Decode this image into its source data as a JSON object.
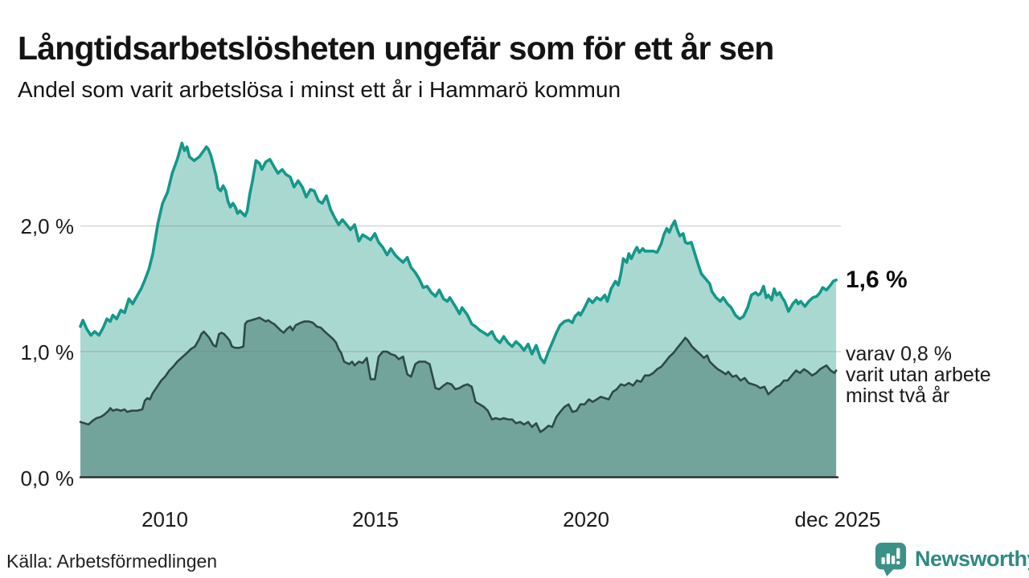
{
  "title": "Långtidsarbetslösheten ungefär som för ett år sen",
  "subtitle": "Andel som varit arbetslösa i minst ett år i Hammarö kommun",
  "source": "Källa: Arbetsförmedlingen",
  "branding": {
    "name": "Newsworthy"
  },
  "annotations": {
    "total_end_label": "1,6 %",
    "sub_line1": "varav 0,8 %",
    "sub_line2": "varit utan arbete",
    "sub_line3": "minst två år"
  },
  "y_ticks": {
    "t0": "0,0 %",
    "t1": "1,0 %",
    "t2": "2,0 %"
  },
  "x_ticks": {
    "t2010": "2010",
    "t2015": "2015",
    "t2020": "2020",
    "tend": "dec 2025"
  },
  "colors": {
    "line_total": "#149889",
    "area_total": "#a9d8d1",
    "line_two_years": "#2d4a45",
    "area_two_years": "#73a49c",
    "grid": "rgba(120,120,120,0.30)",
    "axis": "#222222",
    "brand_teal": "#2e8b81",
    "brand_icon": "#3b9187"
  },
  "chart_data": {
    "type": "area",
    "title": "Långtidsarbetslösheten ungefär som för ett år sen",
    "subtitle": "Andel som varit arbetslösa i minst ett år i Hammarö kommun",
    "x_unit": "decimal_year (monthly estimates)",
    "x_range": [
      2008.0,
      2025.94
    ],
    "ylabel": "procent",
    "ylim": [
      0,
      2.8
    ],
    "y_gridlines": [
      1.0,
      2.0
    ],
    "x_tick_positions": [
      2010,
      2015,
      2020,
      2025.94
    ],
    "legend_position": "right-edge annotations",
    "series": [
      {
        "name": "Andel arbetslösa minst ett år",
        "end_label": "1,6 %",
        "x": [
          2008.0,
          2008.06,
          2008.15,
          2008.25,
          2008.34,
          2008.44,
          2008.54,
          2008.63,
          2008.71,
          2008.77,
          2008.86,
          2008.96,
          2009.05,
          2009.15,
          2009.24,
          2009.34,
          2009.44,
          2009.53,
          2009.63,
          2009.72,
          2009.84,
          2009.95,
          2010.07,
          2010.18,
          2010.3,
          2010.41,
          2010.47,
          2010.53,
          2010.59,
          2010.7,
          2010.82,
          2010.93,
          2010.99,
          2011.04,
          2011.1,
          2011.16,
          2011.22,
          2011.27,
          2011.33,
          2011.39,
          2011.45,
          2011.5,
          2011.56,
          2011.62,
          2011.68,
          2011.73,
          2011.79,
          2011.85,
          2011.91,
          2011.96,
          2012.02,
          2012.08,
          2012.17,
          2012.25,
          2012.31,
          2012.4,
          2012.5,
          2012.6,
          2012.69,
          2012.79,
          2012.88,
          2012.98,
          2013.07,
          2013.17,
          2013.27,
          2013.36,
          2013.46,
          2013.55,
          2013.65,
          2013.74,
          2013.84,
          2013.94,
          2014.03,
          2014.13,
          2014.22,
          2014.32,
          2014.41,
          2014.51,
          2014.61,
          2014.7,
          2014.8,
          2014.89,
          2014.99,
          2015.08,
          2015.18,
          2015.28,
          2015.37,
          2015.47,
          2015.56,
          2015.66,
          2015.76,
          2015.85,
          2015.95,
          2016.04,
          2016.14,
          2016.23,
          2016.33,
          2016.43,
          2016.52,
          2016.62,
          2016.71,
          2016.77,
          2016.9,
          2017.0,
          2017.06,
          2017.19,
          2017.29,
          2017.38,
          2017.48,
          2017.58,
          2017.67,
          2017.77,
          2017.86,
          2017.96,
          2018.05,
          2018.15,
          2018.25,
          2018.34,
          2018.44,
          2018.53,
          2018.63,
          2018.72,
          2018.82,
          2018.92,
          2019.01,
          2019.11,
          2019.2,
          2019.3,
          2019.39,
          2019.49,
          2019.59,
          2019.68,
          2019.74,
          2019.83,
          2019.87,
          2019.97,
          2020.07,
          2020.16,
          2020.26,
          2020.35,
          2020.45,
          2020.51,
          2020.6,
          2020.7,
          2020.77,
          2020.83,
          2020.89,
          2020.97,
          2021.02,
          2021.08,
          2021.16,
          2021.21,
          2021.27,
          2021.35,
          2021.4,
          2021.5,
          2021.6,
          2021.69,
          2021.79,
          2021.85,
          2021.92,
          2021.98,
          2022.04,
          2022.11,
          2022.17,
          2022.23,
          2022.31,
          2022.36,
          2022.42,
          2022.5,
          2022.55,
          2022.65,
          2022.74,
          2022.84,
          2022.94,
          2022.99,
          2023.09,
          2023.19,
          2023.26,
          2023.36,
          2023.45,
          2023.55,
          2023.65,
          2023.74,
          2023.84,
          2023.93,
          2024.03,
          2024.09,
          2024.14,
          2024.22,
          2024.28,
          2024.33,
          2024.41,
          2024.47,
          2024.53,
          2024.6,
          2024.66,
          2024.72,
          2024.81,
          2024.91,
          2024.99,
          2025.04,
          2025.1,
          2025.2,
          2025.29,
          2025.39,
          2025.48,
          2025.56,
          2025.62,
          2025.71,
          2025.81,
          2025.87,
          2025.94
        ],
        "values": [
          1.2,
          1.25,
          1.18,
          1.13,
          1.16,
          1.13,
          1.19,
          1.26,
          1.24,
          1.29,
          1.26,
          1.33,
          1.31,
          1.42,
          1.38,
          1.44,
          1.5,
          1.57,
          1.66,
          1.78,
          2.02,
          2.18,
          2.27,
          2.42,
          2.53,
          2.66,
          2.6,
          2.63,
          2.55,
          2.52,
          2.55,
          2.6,
          2.63,
          2.61,
          2.56,
          2.48,
          2.4,
          2.3,
          2.28,
          2.32,
          2.28,
          2.2,
          2.15,
          2.18,
          2.15,
          2.1,
          2.12,
          2.1,
          2.08,
          2.12,
          2.25,
          2.35,
          2.52,
          2.5,
          2.45,
          2.51,
          2.53,
          2.47,
          2.42,
          2.45,
          2.41,
          2.39,
          2.31,
          2.36,
          2.31,
          2.23,
          2.29,
          2.28,
          2.2,
          2.18,
          2.24,
          2.13,
          2.07,
          2.01,
          2.05,
          2.01,
          1.97,
          2.01,
          1.88,
          1.93,
          1.91,
          1.89,
          1.94,
          1.87,
          1.83,
          1.77,
          1.82,
          1.77,
          1.74,
          1.71,
          1.75,
          1.67,
          1.63,
          1.58,
          1.51,
          1.52,
          1.47,
          1.44,
          1.49,
          1.42,
          1.4,
          1.43,
          1.36,
          1.3,
          1.35,
          1.29,
          1.22,
          1.2,
          1.17,
          1.15,
          1.13,
          1.16,
          1.1,
          1.07,
          1.12,
          1.07,
          1.04,
          1.08,
          1.05,
          1.01,
          1.06,
          0.98,
          1.05,
          0.95,
          0.91,
          1.0,
          1.07,
          1.15,
          1.21,
          1.24,
          1.25,
          1.23,
          1.28,
          1.31,
          1.29,
          1.35,
          1.42,
          1.39,
          1.43,
          1.41,
          1.45,
          1.4,
          1.5,
          1.56,
          1.53,
          1.62,
          1.74,
          1.71,
          1.78,
          1.74,
          1.8,
          1.83,
          1.79,
          1.82,
          1.8,
          1.8,
          1.8,
          1.79,
          1.86,
          1.93,
          1.98,
          1.95,
          2.0,
          2.04,
          1.97,
          1.92,
          1.94,
          1.87,
          1.86,
          1.87,
          1.82,
          1.71,
          1.62,
          1.58,
          1.54,
          1.48,
          1.43,
          1.4,
          1.43,
          1.38,
          1.35,
          1.29,
          1.26,
          1.28,
          1.35,
          1.45,
          1.47,
          1.45,
          1.46,
          1.52,
          1.43,
          1.45,
          1.41,
          1.5,
          1.45,
          1.47,
          1.43,
          1.4,
          1.32,
          1.38,
          1.41,
          1.38,
          1.4,
          1.36,
          1.4,
          1.43,
          1.44,
          1.47,
          1.51,
          1.49,
          1.53,
          1.56,
          1.57
        ]
      },
      {
        "name": "Varav utan arbete minst två år",
        "end_label": "varav 0,8 %",
        "x": [
          2008.0,
          2008.1,
          2008.19,
          2008.29,
          2008.38,
          2008.48,
          2008.57,
          2008.67,
          2008.71,
          2008.77,
          2008.86,
          2008.96,
          2009.05,
          2009.11,
          2009.21,
          2009.34,
          2009.47,
          2009.53,
          2009.59,
          2009.65,
          2009.72,
          2009.82,
          2009.92,
          2010.01,
          2010.11,
          2010.2,
          2010.3,
          2010.43,
          2010.53,
          2010.62,
          2010.72,
          2010.82,
          2010.87,
          2010.93,
          2011.01,
          2011.06,
          2011.16,
          2011.22,
          2011.29,
          2011.35,
          2011.41,
          2011.49,
          2011.54,
          2011.6,
          2011.68,
          2011.77,
          2011.87,
          2011.91,
          2011.96,
          2012.06,
          2012.16,
          2012.25,
          2012.35,
          2012.4,
          2012.46,
          2012.54,
          2012.6,
          2012.69,
          2012.75,
          2012.83,
          2012.9,
          2012.98,
          2013.04,
          2013.11,
          2013.17,
          2013.23,
          2013.32,
          2013.42,
          2013.52,
          2013.61,
          2013.71,
          2013.8,
          2013.9,
          2014.0,
          2014.07,
          2014.13,
          2014.19,
          2014.26,
          2014.38,
          2014.45,
          2014.51,
          2014.61,
          2014.7,
          2014.8,
          2014.89,
          2014.99,
          2015.08,
          2015.18,
          2015.28,
          2015.37,
          2015.47,
          2015.56,
          2015.66,
          2015.76,
          2015.85,
          2015.95,
          2016.04,
          2016.18,
          2016.29,
          2016.43,
          2016.52,
          2016.62,
          2016.71,
          2016.81,
          2016.9,
          2017.0,
          2017.1,
          2017.19,
          2017.29,
          2017.38,
          2017.48,
          2017.58,
          2017.67,
          2017.77,
          2017.86,
          2017.96,
          2018.05,
          2018.15,
          2018.25,
          2018.34,
          2018.44,
          2018.53,
          2018.63,
          2018.72,
          2018.82,
          2018.92,
          2019.01,
          2019.11,
          2019.2,
          2019.3,
          2019.39,
          2019.49,
          2019.59,
          2019.68,
          2019.78,
          2019.87,
          2019.97,
          2020.07,
          2020.16,
          2020.26,
          2020.35,
          2020.45,
          2020.54,
          2020.64,
          2020.73,
          2020.83,
          2020.92,
          2021.02,
          2021.12,
          2021.21,
          2021.31,
          2021.4,
          2021.5,
          2021.6,
          2021.69,
          2021.79,
          2021.89,
          2021.98,
          2022.08,
          2022.17,
          2022.27,
          2022.36,
          2022.42,
          2022.52,
          2022.61,
          2022.71,
          2022.8,
          2022.88,
          2022.94,
          2023.03,
          2023.13,
          2023.23,
          2023.32,
          2023.38,
          2023.48,
          2023.57,
          2023.67,
          2023.77,
          2023.86,
          2023.96,
          2024.05,
          2024.14,
          2024.24,
          2024.33,
          2024.43,
          2024.53,
          2024.6,
          2024.7,
          2024.79,
          2024.89,
          2024.99,
          2025.08,
          2025.18,
          2025.27,
          2025.37,
          2025.47,
          2025.56,
          2025.66,
          2025.71,
          2025.81,
          2025.9,
          2025.94
        ],
        "values": [
          0.44,
          0.43,
          0.42,
          0.45,
          0.47,
          0.48,
          0.5,
          0.53,
          0.55,
          0.53,
          0.54,
          0.53,
          0.54,
          0.52,
          0.53,
          0.53,
          0.54,
          0.61,
          0.63,
          0.62,
          0.67,
          0.72,
          0.77,
          0.8,
          0.85,
          0.88,
          0.92,
          0.96,
          0.99,
          1.02,
          1.04,
          1.1,
          1.14,
          1.16,
          1.13,
          1.11,
          1.05,
          1.04,
          1.14,
          1.15,
          1.14,
          1.11,
          1.09,
          1.04,
          1.03,
          1.03,
          1.04,
          1.22,
          1.24,
          1.25,
          1.26,
          1.27,
          1.25,
          1.24,
          1.25,
          1.23,
          1.22,
          1.19,
          1.17,
          1.15,
          1.18,
          1.2,
          1.17,
          1.21,
          1.22,
          1.23,
          1.24,
          1.24,
          1.23,
          1.2,
          1.19,
          1.16,
          1.13,
          1.1,
          1.07,
          1.02,
          0.99,
          0.92,
          0.9,
          0.92,
          0.89,
          0.92,
          0.91,
          0.95,
          0.78,
          0.78,
          0.96,
          1.0,
          1.0,
          0.98,
          0.97,
          0.94,
          0.96,
          0.82,
          0.8,
          0.9,
          0.92,
          0.92,
          0.9,
          0.71,
          0.7,
          0.73,
          0.75,
          0.74,
          0.7,
          0.71,
          0.73,
          0.74,
          0.72,
          0.6,
          0.58,
          0.56,
          0.53,
          0.46,
          0.47,
          0.46,
          0.47,
          0.46,
          0.46,
          0.43,
          0.44,
          0.42,
          0.44,
          0.4,
          0.43,
          0.36,
          0.38,
          0.41,
          0.4,
          0.48,
          0.52,
          0.56,
          0.58,
          0.52,
          0.53,
          0.58,
          0.58,
          0.62,
          0.6,
          0.62,
          0.64,
          0.63,
          0.62,
          0.68,
          0.7,
          0.74,
          0.73,
          0.75,
          0.73,
          0.77,
          0.76,
          0.81,
          0.81,
          0.83,
          0.86,
          0.88,
          0.92,
          0.96,
          0.99,
          1.03,
          1.07,
          1.11,
          1.09,
          1.04,
          1.01,
          0.98,
          0.95,
          0.97,
          0.92,
          0.89,
          0.86,
          0.84,
          0.82,
          0.84,
          0.8,
          0.81,
          0.77,
          0.79,
          0.75,
          0.74,
          0.73,
          0.71,
          0.72,
          0.66,
          0.69,
          0.72,
          0.73,
          0.77,
          0.77,
          0.81,
          0.85,
          0.83,
          0.86,
          0.84,
          0.81,
          0.83,
          0.86,
          0.88,
          0.89,
          0.85,
          0.83,
          0.85
        ]
      }
    ]
  }
}
